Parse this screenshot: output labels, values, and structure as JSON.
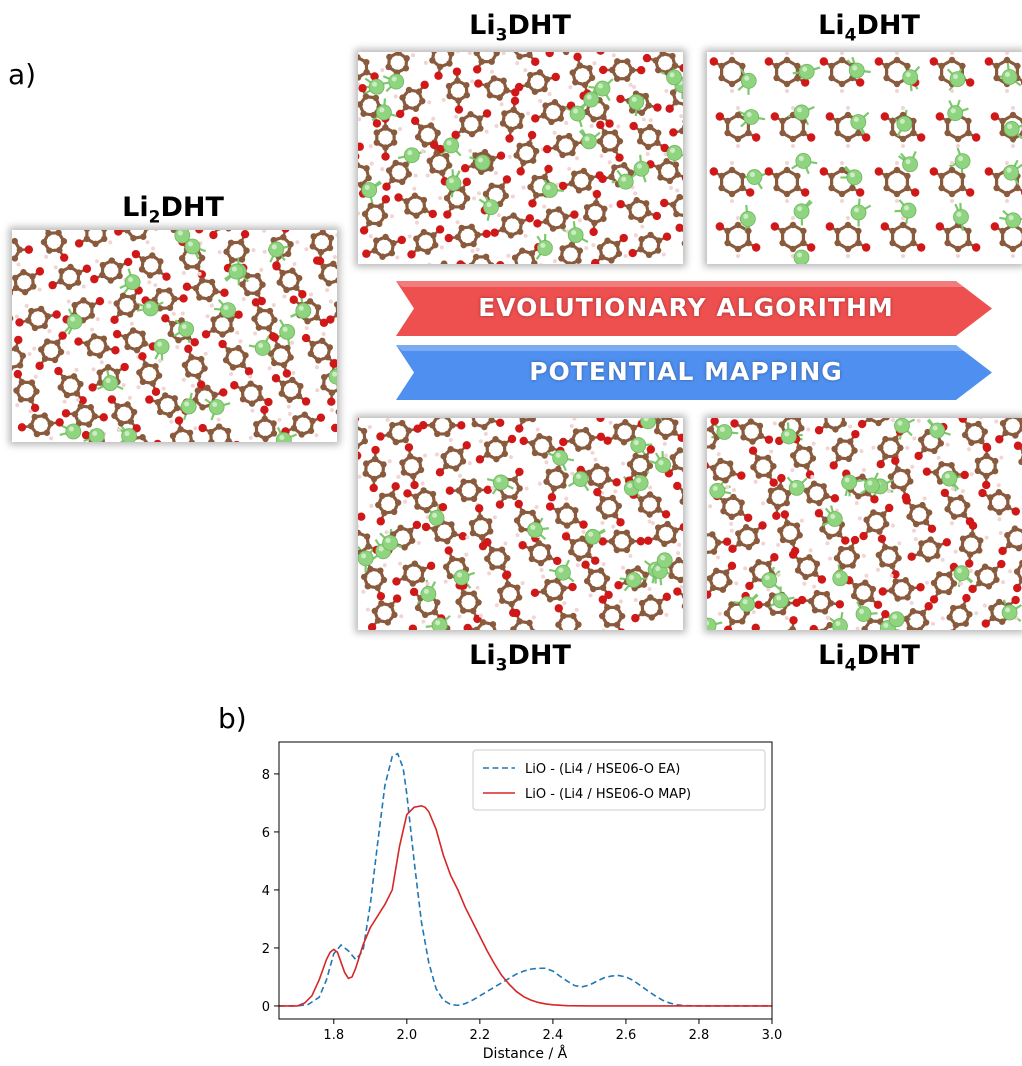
{
  "panel_a": {
    "label": "a)",
    "structures": [
      {
        "id": "li2dht",
        "title_prefix": "Li",
        "title_sub": "2",
        "title_suffix": "DHT"
      },
      {
        "id": "li3dht_ea",
        "title_prefix": "Li",
        "title_sub": "3",
        "title_suffix": "DHT"
      },
      {
        "id": "li4dht_ea",
        "title_prefix": "Li",
        "title_sub": "4",
        "title_suffix": "DHT"
      },
      {
        "id": "li3dht_map",
        "title_prefix": "Li",
        "title_sub": "3",
        "title_suffix": "DHT"
      },
      {
        "id": "li4dht_map",
        "title_prefix": "Li",
        "title_sub": "4",
        "title_suffix": "DHT"
      }
    ],
    "arrows": {
      "evolutionary": {
        "label": "EVOLUTIONARY ALGORITHM",
        "color": "#ee4f4f"
      },
      "potential": {
        "label": "POTENTIAL MAPPING",
        "color": "#4f8fef"
      }
    },
    "atom_colors": {
      "carbon": "#8a5a3c",
      "oxygen": "#d01818",
      "lithium": "#8fd47f",
      "hydrogen": "#f2d4d4"
    }
  },
  "panel_b": {
    "label": "b)",
    "chart_data": {
      "type": "line",
      "xlabel": "Distance / Å",
      "ylabel": "",
      "xlim": [
        1.65,
        3.0
      ],
      "ylim": [
        -0.45,
        9.1
      ],
      "xticks": [
        1.8,
        2.0,
        2.2,
        2.4,
        2.6,
        2.8,
        3.0
      ],
      "xtick_labels": [
        "1.8",
        "2.0",
        "2.2",
        "2.4",
        "2.6",
        "2.8",
        "3.0"
      ],
      "yticks": [
        0,
        2,
        4,
        6,
        8
      ],
      "ytick_labels": [
        "0",
        "2",
        "4",
        "6",
        "8"
      ],
      "legend_position": "top-right",
      "series": [
        {
          "name": "LiO - (Li4 / HSE06-O EA)",
          "color": "#1f77b4",
          "style": "dashed",
          "x": [
            1.65,
            1.7,
            1.73,
            1.76,
            1.78,
            1.8,
            1.82,
            1.84,
            1.86,
            1.88,
            1.9,
            1.92,
            1.94,
            1.96,
            1.975,
            1.99,
            2.0,
            2.02,
            2.04,
            2.06,
            2.08,
            2.1,
            2.12,
            2.14,
            2.16,
            2.18,
            2.2,
            2.22,
            2.24,
            2.26,
            2.28,
            2.3,
            2.32,
            2.34,
            2.36,
            2.38,
            2.4,
            2.42,
            2.44,
            2.46,
            2.48,
            2.5,
            2.52,
            2.54,
            2.56,
            2.58,
            2.6,
            2.62,
            2.64,
            2.66,
            2.68,
            2.7,
            2.72,
            2.74,
            2.76,
            2.8,
            2.9,
            3.0
          ],
          "y": [
            0,
            0,
            0.05,
            0.3,
            0.9,
            1.8,
            2.1,
            1.9,
            1.6,
            1.9,
            3.5,
            5.6,
            7.6,
            8.6,
            8.7,
            8.2,
            7.3,
            5.0,
            2.9,
            1.5,
            0.6,
            0.2,
            0.05,
            0.02,
            0.08,
            0.2,
            0.35,
            0.5,
            0.65,
            0.8,
            0.95,
            1.1,
            1.2,
            1.27,
            1.3,
            1.3,
            1.2,
            1.02,
            0.85,
            0.7,
            0.66,
            0.72,
            0.85,
            0.97,
            1.03,
            1.05,
            1.0,
            0.88,
            0.7,
            0.52,
            0.35,
            0.2,
            0.1,
            0.04,
            0.01,
            0,
            0,
            0
          ]
        },
        {
          "name": "LiO - (Li4 / HSE06-O MAP)",
          "color": "#d62728",
          "style": "solid",
          "x": [
            1.65,
            1.7,
            1.72,
            1.74,
            1.76,
            1.78,
            1.79,
            1.8,
            1.81,
            1.82,
            1.83,
            1.84,
            1.85,
            1.86,
            1.88,
            1.9,
            1.92,
            1.94,
            1.96,
            1.98,
            2.0,
            2.02,
            2.04,
            2.05,
            2.06,
            2.08,
            2.1,
            2.12,
            2.14,
            2.16,
            2.18,
            2.2,
            2.22,
            2.24,
            2.26,
            2.28,
            2.3,
            2.32,
            2.34,
            2.36,
            2.38,
            2.4,
            2.44,
            2.5,
            2.6,
            2.7,
            2.8,
            3.0
          ],
          "y": [
            0,
            0,
            0.1,
            0.35,
            0.9,
            1.6,
            1.85,
            1.95,
            1.85,
            1.5,
            1.15,
            0.95,
            1.0,
            1.3,
            2.1,
            2.7,
            3.1,
            3.5,
            4.0,
            5.5,
            6.6,
            6.85,
            6.9,
            6.85,
            6.7,
            6.1,
            5.2,
            4.5,
            4.0,
            3.4,
            2.9,
            2.4,
            1.9,
            1.45,
            1.05,
            0.75,
            0.5,
            0.32,
            0.2,
            0.12,
            0.07,
            0.04,
            0.01,
            0,
            0,
            0,
            0,
            0
          ]
        }
      ]
    }
  }
}
